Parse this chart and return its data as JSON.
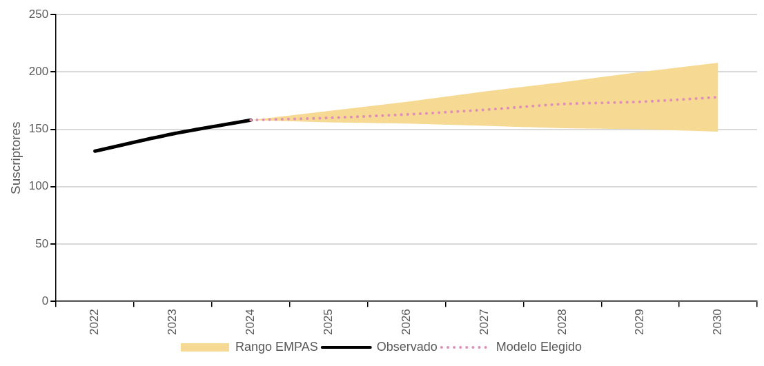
{
  "chart_data": {
    "type": "line",
    "ylabel": "Suscriptores",
    "categories": [
      "2022",
      "2023",
      "2024",
      "2025",
      "2026",
      "2027",
      "2028",
      "2029",
      "2030"
    ],
    "series": [
      {
        "name": "Rango EMPAS",
        "type": "area",
        "color": "#f6d992",
        "values": [
          null,
          null,
          null,
          null,
          null,
          null,
          null,
          null,
          null
        ],
        "lower": [
          null,
          null,
          158,
          156,
          155,
          153,
          151,
          150,
          148
        ],
        "upper": [
          null,
          null,
          158,
          166,
          174,
          183,
          191,
          200,
          208
        ]
      },
      {
        "name": "Observado",
        "type": "line",
        "color": "#000000",
        "line_style": "solid",
        "values": [
          131,
          146,
          158,
          null,
          null,
          null,
          null,
          null,
          null
        ]
      },
      {
        "name": "Modelo Elegido",
        "type": "line",
        "color": "#e08fb8",
        "line_style": "dotted",
        "values": [
          null,
          null,
          158,
          160,
          163,
          167,
          172,
          174,
          178
        ]
      }
    ],
    "ylim": [
      0,
      250
    ],
    "yticks": [
      0,
      50,
      100,
      150,
      200,
      250
    ],
    "grid": "y",
    "legend": "bottom",
    "marker": "none"
  }
}
